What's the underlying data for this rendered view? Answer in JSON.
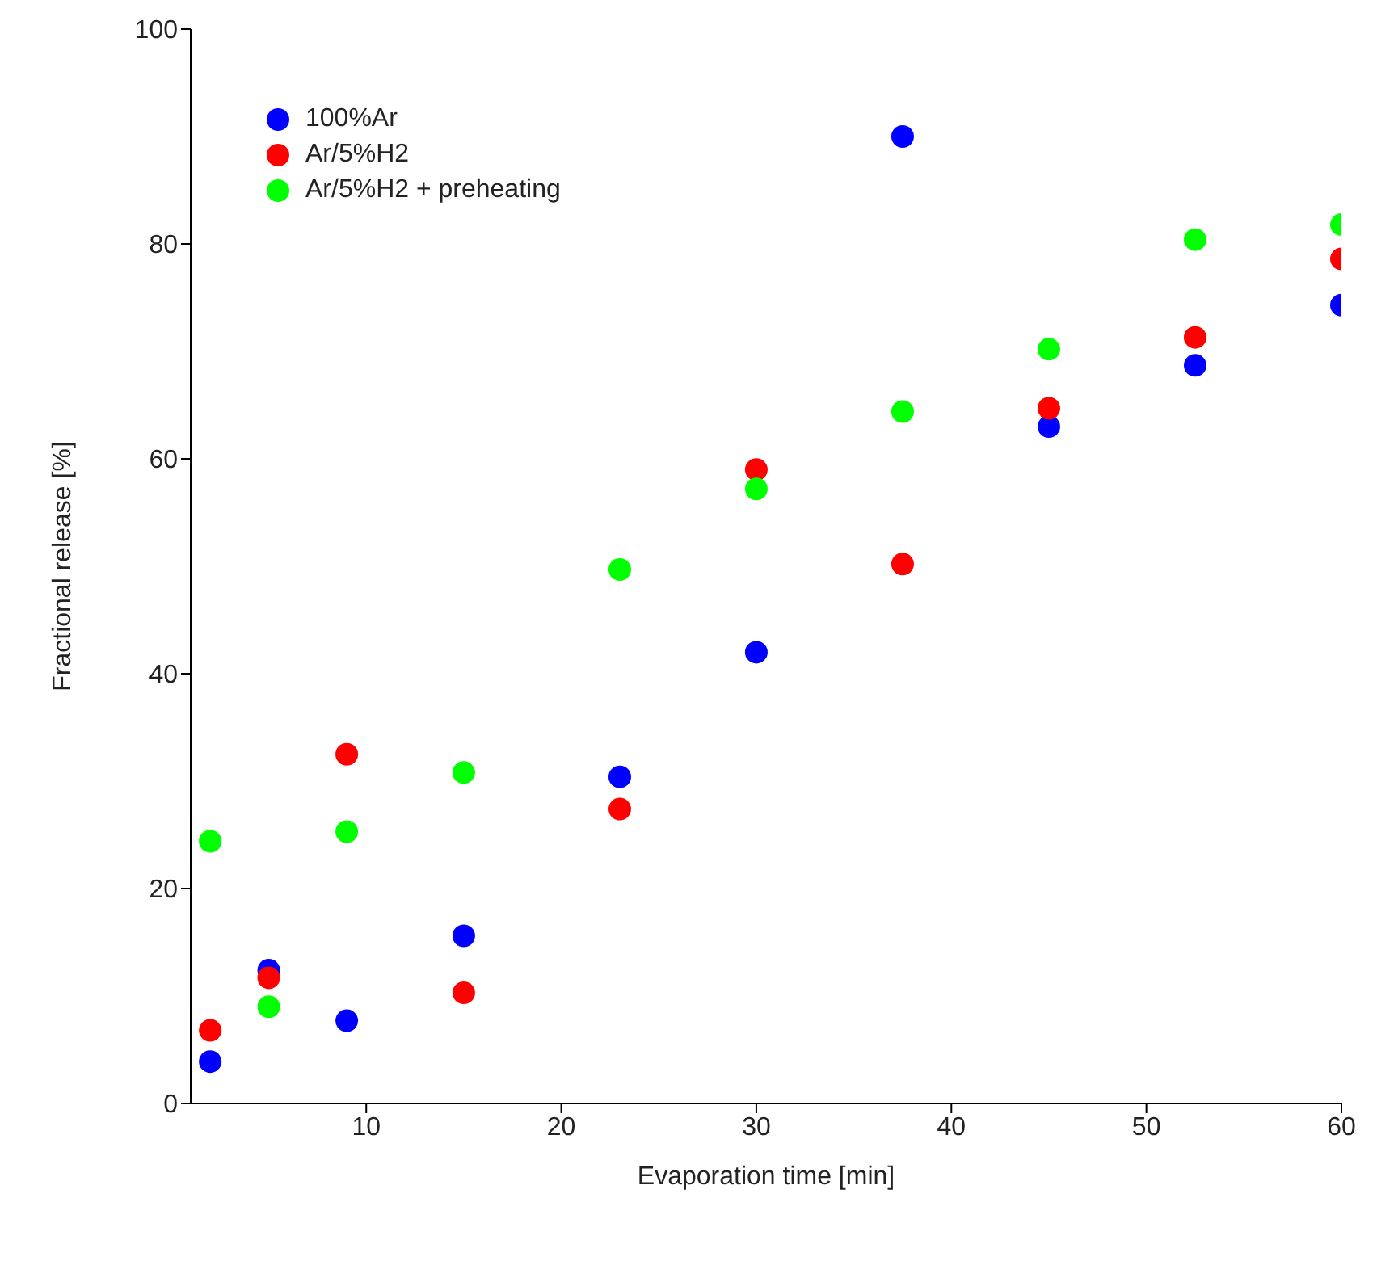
{
  "chart_data": {
    "type": "scatter",
    "xlabel": "Evaporation time [min]",
    "ylabel": "Fractional release [%]",
    "x": [
      2,
      5,
      9,
      15,
      23,
      30,
      37.5,
      45,
      52.5,
      60
    ],
    "series": [
      {
        "name": "100%Ar",
        "color": "#0000ff",
        "values": [
          3.9,
          12.4,
          7.7,
          15.6,
          30.4,
          42,
          90,
          63,
          68.7,
          74.3
        ]
      },
      {
        "name": "Ar/5%H2",
        "color": "#ff0000",
        "values": [
          6.8,
          11.7,
          32.5,
          10.3,
          27.4,
          59,
          50.2,
          64.7,
          71.3,
          78.6
        ]
      },
      {
        "name": "Ar/5%H2 + preheating",
        "color": "#00ff00",
        "values": [
          24.4,
          9,
          25.3,
          30.8,
          49.7,
          57.2,
          64.4,
          70.2,
          80.4,
          81.8
        ]
      }
    ],
    "xlim": [
      1,
      60
    ],
    "xticks": [
      10,
      20,
      30,
      40,
      50,
      60
    ],
    "ylim": [
      0,
      100
    ],
    "yticks": [
      0,
      20,
      40,
      60,
      80,
      100
    ],
    "grid": false,
    "legend": "top left",
    "marker": "circle"
  }
}
